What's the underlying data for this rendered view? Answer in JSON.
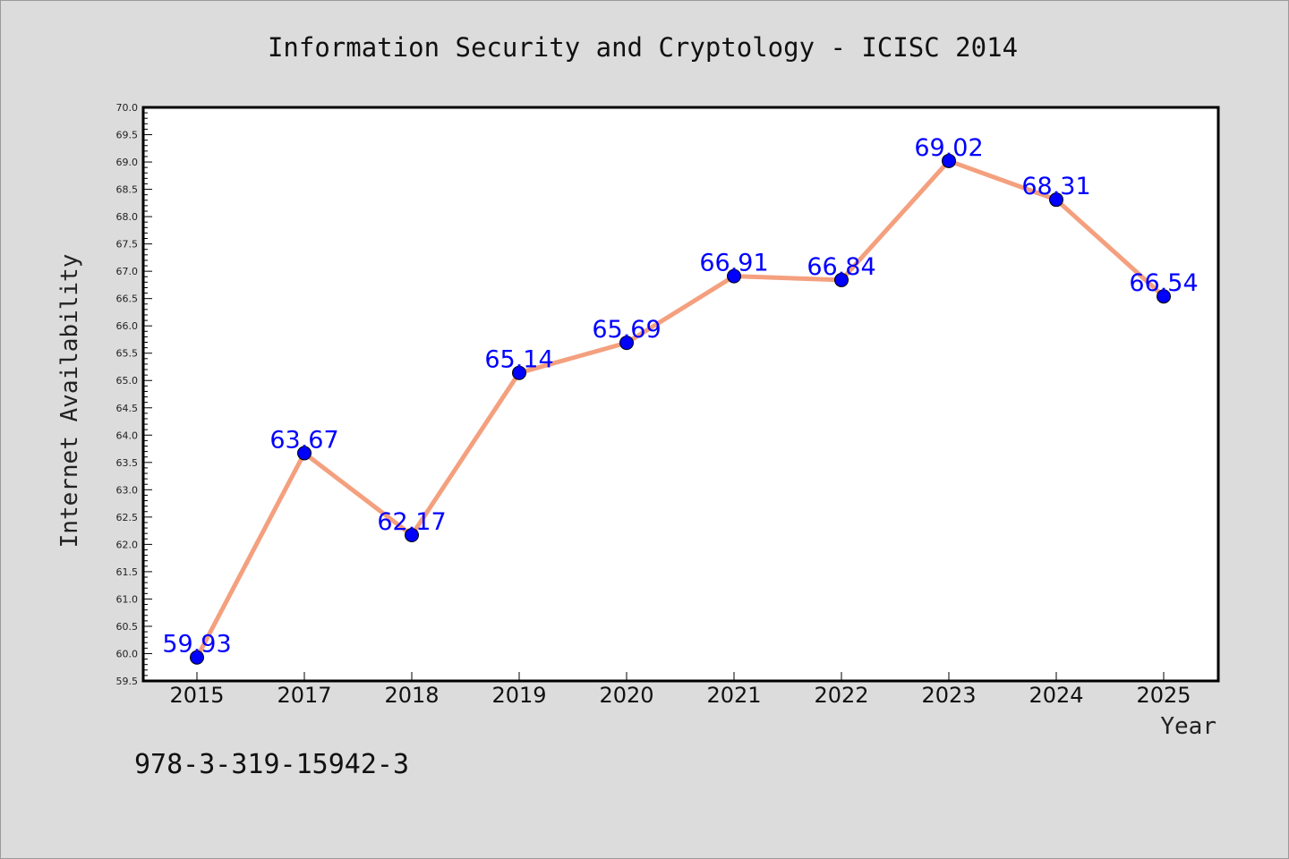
{
  "chart_data": {
    "type": "line",
    "title": "Information Security and Cryptology - ICISC 2014",
    "xlabel": "Year",
    "ylabel": "Internet Availability",
    "categories": [
      "2015",
      "2017",
      "2018",
      "2019",
      "2020",
      "2021",
      "2022",
      "2023",
      "2024",
      "2025"
    ],
    "series": [
      {
        "values": [
          59.93,
          63.67,
          62.17,
          65.14,
          65.69,
          66.91,
          66.84,
          69.02,
          68.31,
          66.54
        ],
        "labels": [
          "59.93",
          "63.67",
          "62.17",
          "65.14",
          "65.69",
          "66.91",
          "66.84",
          "69.02",
          "68.31",
          "66.54"
        ]
      }
    ],
    "ylim": [
      59.5,
      70.0
    ],
    "yticks": [
      "59.5",
      "60.0",
      "60.5",
      "61.0",
      "61.5",
      "62.0",
      "62.5",
      "63.0",
      "63.5",
      "64.0",
      "64.5",
      "65.0",
      "65.5",
      "66.0",
      "66.5",
      "67.0",
      "67.5",
      "68.0",
      "68.5",
      "69.0",
      "69.5",
      "70.0"
    ],
    "grid": false,
    "legend": "none",
    "colors": {
      "line": "#f4a07e",
      "marker": "#0000ff",
      "label": "#0000ff",
      "plot_background": "#ffffff",
      "page_background": "#dcdcdc"
    }
  },
  "footnote": "978-3-319-15942-3"
}
